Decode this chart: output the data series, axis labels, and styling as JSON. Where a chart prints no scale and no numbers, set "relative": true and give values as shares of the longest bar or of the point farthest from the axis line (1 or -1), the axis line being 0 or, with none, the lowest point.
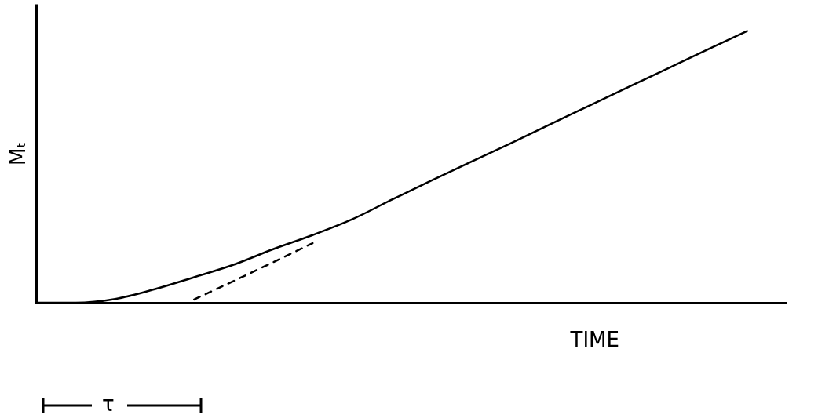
{
  "chart_data": {
    "type": "line",
    "relative": true,
    "xlabel": "TIME",
    "ylabel": "Mₜ",
    "categories": [
      null,
      null,
      null,
      null,
      null,
      null,
      null,
      null,
      null,
      null,
      null,
      null,
      null,
      null,
      null,
      null,
      null,
      null,
      null,
      null
    ],
    "series": [
      {
        "color": "#000000",
        "line_style": "solid",
        "values": [
          0,
          0,
          0.014,
          0.05,
          0.094,
          0.14,
          0.197,
          0.249,
          0.307,
          0.379,
          0.449,
          0.518,
          0.586,
          0.656,
          0.725,
          0.794,
          0.863,
          0.932,
          1,
          null
        ]
      },
      {
        "color": "#000000",
        "line_style": "dashed",
        "values": [
          null,
          null,
          null,
          null,
          0.012,
          0.08,
          0.149,
          0.219,
          null,
          null,
          null,
          null,
          null,
          null,
          null,
          null,
          null,
          null,
          null,
          null
        ]
      }
    ],
    "annotations": [
      "τ"
    ]
  }
}
